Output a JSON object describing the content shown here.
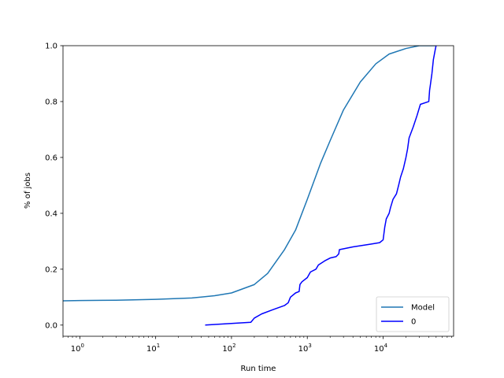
{
  "chart_data": {
    "type": "line",
    "title": "",
    "xlabel": "Run time",
    "ylabel": "% of jobs",
    "xscale": "log",
    "xlim": [
      0.6,
      85000
    ],
    "ylim": [
      -0.04,
      1.0
    ],
    "grid": false,
    "legend_position": "bottom-right",
    "x_ticks": [
      {
        "value": 1,
        "base": "10",
        "exp": "0"
      },
      {
        "value": 10,
        "base": "10",
        "exp": "1"
      },
      {
        "value": 100,
        "base": "10",
        "exp": "2"
      },
      {
        "value": 1000,
        "base": "10",
        "exp": "3"
      },
      {
        "value": 10000,
        "base": "10",
        "exp": "4"
      }
    ],
    "y_ticks": [
      {
        "value": 0.0,
        "label": "0.0"
      },
      {
        "value": 0.2,
        "label": "0.2"
      },
      {
        "value": 0.4,
        "label": "0.4"
      },
      {
        "value": 0.6,
        "label": "0.6"
      },
      {
        "value": 0.8,
        "label": "0.8"
      },
      {
        "value": 1.0,
        "label": "1.0"
      }
    ],
    "series": [
      {
        "name": "Model",
        "color": "#1f77b4",
        "points": [
          [
            0.6,
            0.087
          ],
          [
            1,
            0.088
          ],
          [
            3,
            0.089
          ],
          [
            10,
            0.092
          ],
          [
            30,
            0.097
          ],
          [
            60,
            0.105
          ],
          [
            100,
            0.115
          ],
          [
            200,
            0.145
          ],
          [
            300,
            0.185
          ],
          [
            500,
            0.27
          ],
          [
            700,
            0.34
          ],
          [
            1000,
            0.45
          ],
          [
            1500,
            0.58
          ],
          [
            2000,
            0.66
          ],
          [
            3000,
            0.77
          ],
          [
            5000,
            0.87
          ],
          [
            8000,
            0.935
          ],
          [
            12000,
            0.97
          ],
          [
            20000,
            0.99
          ],
          [
            30000,
            1.0
          ],
          [
            50000,
            1.0
          ]
        ]
      },
      {
        "name": "0",
        "color": "#0000ff",
        "points": [
          [
            45,
            0.0
          ],
          [
            180,
            0.01
          ],
          [
            200,
            0.025
          ],
          [
            250,
            0.04
          ],
          [
            350,
            0.055
          ],
          [
            500,
            0.07
          ],
          [
            560,
            0.08
          ],
          [
            600,
            0.1
          ],
          [
            700,
            0.115
          ],
          [
            780,
            0.12
          ],
          [
            800,
            0.145
          ],
          [
            850,
            0.155
          ],
          [
            1000,
            0.17
          ],
          [
            1100,
            0.19
          ],
          [
            1300,
            0.2
          ],
          [
            1400,
            0.215
          ],
          [
            1700,
            0.23
          ],
          [
            2000,
            0.24
          ],
          [
            2400,
            0.245
          ],
          [
            2600,
            0.255
          ],
          [
            2650,
            0.27
          ],
          [
            4000,
            0.28
          ],
          [
            7000,
            0.29
          ],
          [
            9000,
            0.295
          ],
          [
            10000,
            0.305
          ],
          [
            10500,
            0.35
          ],
          [
            11000,
            0.38
          ],
          [
            12000,
            0.4
          ],
          [
            12500,
            0.42
          ],
          [
            13500,
            0.45
          ],
          [
            15000,
            0.47
          ],
          [
            16000,
            0.5
          ],
          [
            17000,
            0.53
          ],
          [
            18500,
            0.56
          ],
          [
            20000,
            0.6
          ],
          [
            21000,
            0.63
          ],
          [
            22000,
            0.67
          ],
          [
            25000,
            0.71
          ],
          [
            28000,
            0.75
          ],
          [
            31000,
            0.79
          ],
          [
            40000,
            0.8
          ],
          [
            41000,
            0.84
          ],
          [
            42000,
            0.86
          ],
          [
            44000,
            0.9
          ],
          [
            46000,
            0.95
          ],
          [
            49000,
            0.99
          ],
          [
            50000,
            1.0
          ]
        ]
      }
    ]
  }
}
